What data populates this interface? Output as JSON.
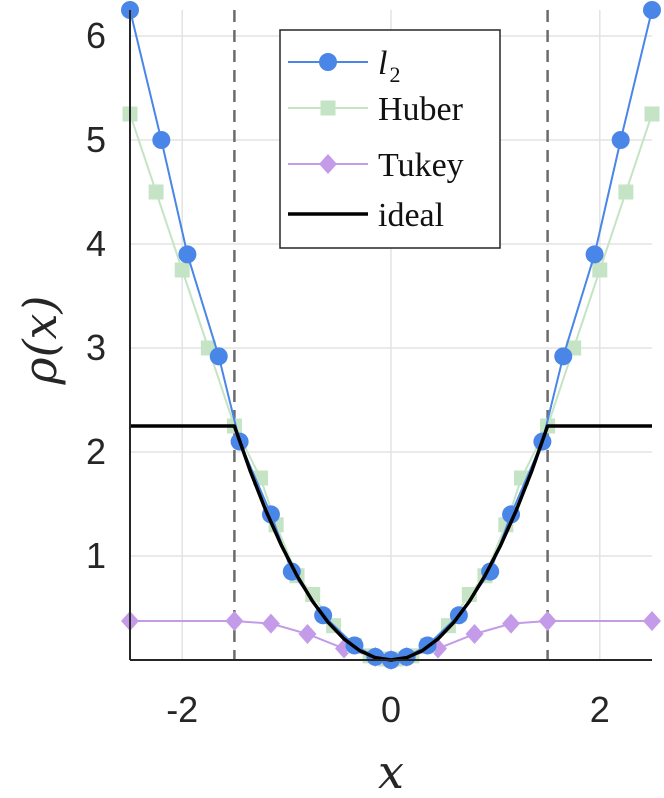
{
  "chart_data": {
    "type": "line",
    "xlabel": "x",
    "ylabel": "ρ(x)",
    "xlim": [
      -2.5,
      2.5
    ],
    "ylim": [
      0,
      6.25
    ],
    "xticks": [
      -2,
      0,
      2
    ],
    "xtick_labels": [
      "-2",
      "0",
      "2"
    ],
    "yticks": [
      1,
      2,
      3,
      4,
      5,
      6
    ],
    "ytick_labels": [
      "1",
      "2",
      "3",
      "4",
      "5",
      "6"
    ],
    "grid": true,
    "legend_position": "top-center",
    "vlines": [
      -1.5,
      1.5
    ],
    "x": [
      -2.5,
      -2.25,
      -2.0,
      -1.75,
      -1.5,
      -1.3,
      -1.2,
      -1.0,
      -0.9,
      -0.7,
      -0.6,
      -0.4,
      -0.3,
      -0.15,
      0.0,
      0.15,
      0.3,
      0.4,
      0.6,
      0.7,
      0.9,
      1.0,
      1.2,
      1.3,
      1.5,
      1.75,
      2.0,
      2.25,
      2.5
    ],
    "series": [
      {
        "name": "l2",
        "legend_label": "l",
        "legend_sub": "2",
        "color": "#4a86e8",
        "marker": "circle",
        "x": [
          -2.5,
          -2.2,
          -1.95,
          -1.65,
          -1.45,
          -1.15,
          -0.95,
          -0.65,
          -0.35,
          -0.15,
          0.0,
          0.15,
          0.35,
          0.65,
          0.95,
          1.15,
          1.45,
          1.65,
          1.95,
          2.2,
          2.5
        ],
        "values": [
          6.25,
          5.0,
          3.9,
          2.92,
          2.1,
          1.4,
          0.85,
          0.43,
          0.14,
          0.03,
          0.0,
          0.03,
          0.14,
          0.43,
          0.85,
          1.4,
          2.1,
          2.92,
          3.9,
          5.0,
          6.25
        ]
      },
      {
        "name": "Huber",
        "color": "#c5e3c5",
        "marker": "square",
        "x": [
          -2.5,
          -2.25,
          -2.0,
          -1.75,
          -1.5,
          -1.25,
          -1.1,
          -0.9,
          -0.75,
          -0.55,
          -0.35,
          -0.2,
          -0.05,
          0.05,
          0.2,
          0.35,
          0.55,
          0.75,
          0.9,
          1.1,
          1.25,
          1.5,
          1.75,
          2.0,
          2.25,
          2.5
        ],
        "values": [
          5.25,
          4.5,
          3.75,
          3.0,
          2.25,
          1.75,
          1.3,
          0.81,
          0.63,
          0.33,
          0.14,
          0.04,
          0.01,
          0.01,
          0.04,
          0.14,
          0.33,
          0.63,
          0.81,
          1.3,
          1.75,
          2.25,
          3.0,
          3.75,
          4.5,
          5.25
        ]
      },
      {
        "name": "Tukey",
        "color": "#c39be8",
        "marker": "diamond",
        "x": [
          -2.5,
          -1.5,
          -1.15,
          -0.8,
          -0.45,
          -0.15,
          0.0,
          0.15,
          0.45,
          0.8,
          1.15,
          1.5,
          2.5
        ],
        "values": [
          0.375,
          0.375,
          0.35,
          0.25,
          0.11,
          0.03,
          0.0,
          0.03,
          0.11,
          0.25,
          0.35,
          0.375,
          0.375
        ]
      },
      {
        "name": "ideal",
        "color": "#000000",
        "marker": "none",
        "x": [
          -2.5,
          -1.5,
          -1.35,
          -1.2,
          -1.05,
          -0.9,
          -0.75,
          -0.6,
          -0.45,
          -0.3,
          -0.15,
          0.0,
          0.15,
          0.3,
          0.45,
          0.6,
          0.75,
          0.9,
          1.05,
          1.2,
          1.35,
          1.5,
          2.5
        ],
        "values": [
          2.25,
          2.25,
          1.8225,
          1.44,
          1.1025,
          0.81,
          0.5625,
          0.36,
          0.2025,
          0.09,
          0.0225,
          0.0,
          0.0225,
          0.09,
          0.2025,
          0.36,
          0.5625,
          0.81,
          1.1025,
          1.44,
          1.8225,
          2.25,
          2.25
        ]
      }
    ]
  }
}
